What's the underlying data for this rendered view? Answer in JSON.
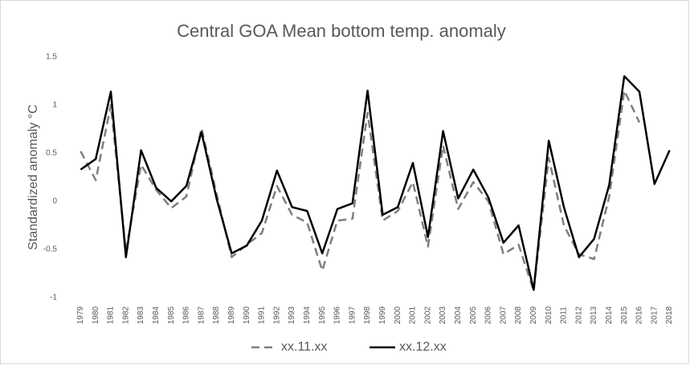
{
  "chart_data": {
    "type": "line",
    "title": "Central GOA Mean bottom temp. anomaly",
    "y_label": "Standardized anomaly °C",
    "categories": [
      "1979",
      "1980",
      "1981",
      "1982",
      "1983",
      "1984",
      "1985",
      "1986",
      "1987",
      "1988",
      "1989",
      "1990",
      "1991",
      "1992",
      "1993",
      "1994",
      "1995",
      "1996",
      "1997",
      "1998",
      "1999",
      "2000",
      "2001",
      "2002",
      "2003",
      "2004",
      "2005",
      "2006",
      "2007",
      "2008",
      "2009",
      "2010",
      "2011",
      "2012",
      "2013",
      "2014",
      "2015",
      "2016",
      "2017",
      "2018"
    ],
    "series": [
      {
        "name": "xx.11.xx",
        "color": "#7f7f7f",
        "dash": true,
        "values": [
          0.52,
          0.22,
          1.0,
          -0.52,
          0.38,
          0.12,
          -0.07,
          0.05,
          0.76,
          0.08,
          -0.58,
          -0.45,
          -0.33,
          0.16,
          -0.14,
          -0.22,
          -0.72,
          -0.2,
          -0.18,
          0.92,
          -0.2,
          -0.1,
          0.2,
          -0.47,
          0.58,
          -0.08,
          0.2,
          0.0,
          -0.55,
          -0.45,
          -0.93,
          0.45,
          -0.25,
          -0.55,
          -0.6,
          0.05,
          1.15,
          0.82,
          null,
          null
        ]
      },
      {
        "name": "xx.12.xx",
        "color": "#000000",
        "dash": false,
        "values": [
          0.33,
          0.44,
          1.14,
          -0.58,
          0.53,
          0.14,
          0.0,
          0.16,
          0.72,
          0.03,
          -0.54,
          -0.46,
          -0.2,
          0.32,
          -0.06,
          -0.1,
          -0.54,
          -0.08,
          -0.02,
          1.15,
          -0.14,
          -0.06,
          0.4,
          -0.37,
          0.73,
          0.03,
          0.33,
          0.04,
          -0.43,
          -0.25,
          -0.92,
          0.63,
          -0.06,
          -0.58,
          -0.39,
          0.17,
          1.3,
          1.14,
          0.18,
          0.53
        ]
      }
    ],
    "ylim": [
      -1,
      1.5
    ],
    "yticks": [
      -1,
      -0.5,
      0,
      0.5,
      1,
      1.5
    ],
    "grid": false
  }
}
